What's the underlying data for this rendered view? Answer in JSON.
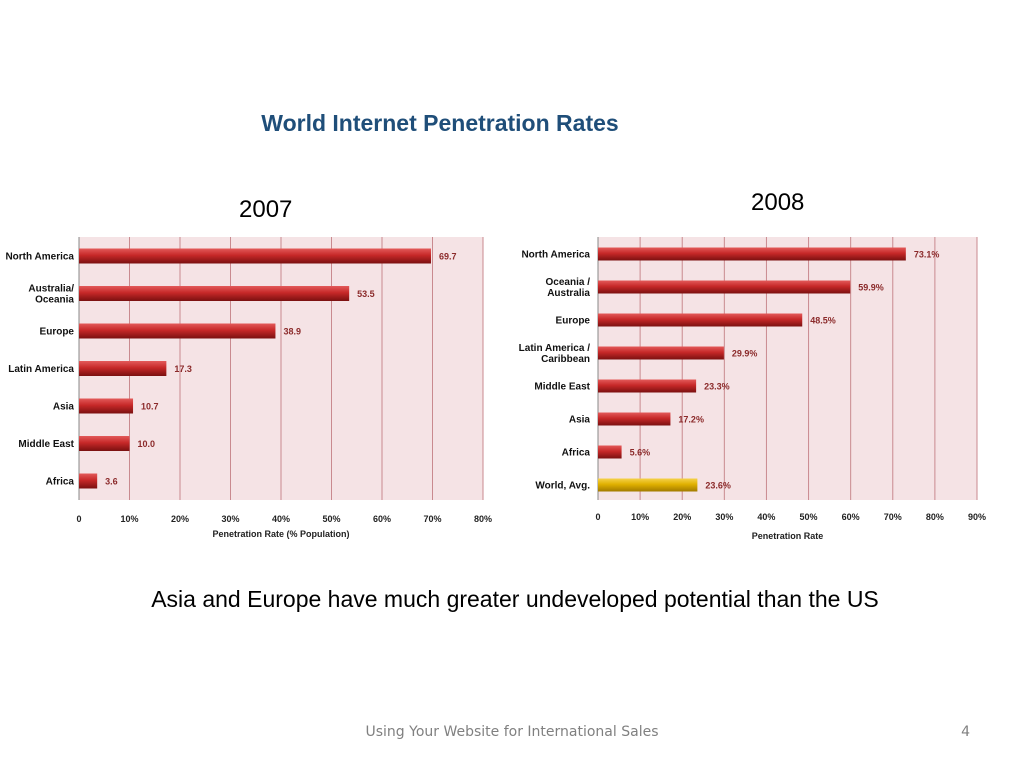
{
  "slide": {
    "title": "World Internet Penetration Rates",
    "caption": "Asia and Europe have much greater undeveloped potential than the US",
    "footer": "Using Your Website for International Sales",
    "page_number": "4"
  },
  "colors": {
    "title": "#1f4e79",
    "bar_red": "#c62828",
    "bar_gold": "#e0b000",
    "plot_bg": "#f5e3e5",
    "grid": "#c98a8f",
    "value_label": "#8b2a2a"
  },
  "chart_data": [
    {
      "type": "bar",
      "orientation": "horizontal",
      "title": "2007",
      "xlabel": "Penetration Rate (% Population)",
      "xlim": [
        0,
        80
      ],
      "xticks": [
        "0",
        "10%",
        "20%",
        "30%",
        "40%",
        "50%",
        "60%",
        "70%",
        "80%"
      ],
      "grid": true,
      "categories": [
        "North America",
        "Australia/\nOceania",
        "Europe",
        "Latin America",
        "Asia",
        "Middle East",
        "Africa"
      ],
      "values": [
        69.7,
        53.5,
        38.9,
        17.3,
        10.7,
        10.0,
        3.6
      ],
      "labels": [
        "69.7",
        "53.5",
        "38.9",
        "17.3",
        "10.7",
        "10.0",
        "3.6"
      ]
    },
    {
      "type": "bar",
      "orientation": "horizontal",
      "title": "2008",
      "xlabel": "Penetration Rate",
      "xlim": [
        0,
        90
      ],
      "xticks": [
        "0",
        "10%",
        "20%",
        "30%",
        "40%",
        "50%",
        "60%",
        "70%",
        "80%",
        "90%"
      ],
      "grid": true,
      "categories": [
        "North America",
        "Oceania  /\nAustralia",
        "Europe",
        "Latin America /\nCaribbean",
        "Middle East",
        "Asia",
        "Africa",
        "World, Avg."
      ],
      "values": [
        73.1,
        59.9,
        48.5,
        29.9,
        23.3,
        17.2,
        5.6,
        23.6
      ],
      "labels": [
        "73.1%",
        "59.9%",
        "48.5%",
        "29.9%",
        "23.3%",
        "17.2%",
        "5.6%",
        "23.6%"
      ],
      "highlight_index": 7
    }
  ]
}
